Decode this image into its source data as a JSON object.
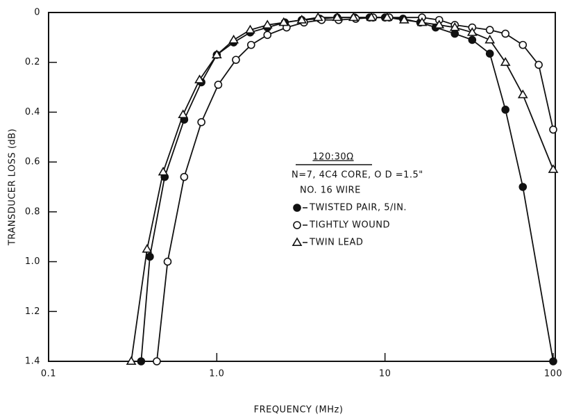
{
  "chart_data": {
    "type": "line",
    "x_label": "FREQUENCY (MHz)",
    "y_label": "TRANSDUCER LOSS (dB)",
    "annotations": [
      "120:30Ω",
      "N=7, 4C4 CORE, O D =1.5\"",
      "NO. 16 WIRE"
    ],
    "xscale": "log",
    "y_inverted": true,
    "xlim": [
      0.1,
      100
    ],
    "ylim": [
      0,
      1.4
    ],
    "xticks": [
      0.1,
      {
        "value": 1,
        "label": "1.0"
      },
      10,
      100
    ],
    "yticks": [
      0,
      0.2,
      0.4,
      0.6,
      0.8,
      {
        "value": 1,
        "label": "1.0"
      },
      1.2,
      1.4
    ],
    "series": [
      {
        "name": "TWISTED PAIR, 5/IN.",
        "marker": "filled-circle",
        "color": "#111",
        "x": [
          0.355,
          0.4,
          0.49,
          0.64,
          0.81,
          1.0,
          1.26,
          1.58,
          2.0,
          2.54,
          3.2,
          4.1,
          5.2,
          6.6,
          8.1,
          10,
          12.8,
          16.2,
          20,
          26,
          33,
          42,
          52,
          66,
          100
        ],
        "values": [
          1.4,
          0.98,
          0.66,
          0.43,
          0.28,
          0.17,
          0.12,
          0.08,
          0.06,
          0.04,
          0.03,
          0.025,
          0.02,
          0.02,
          0.02,
          0.02,
          0.025,
          0.04,
          0.06,
          0.085,
          0.11,
          0.165,
          0.39,
          0.7,
          1.4
        ]
      },
      {
        "name": "TIGHTLY WOUND",
        "marker": "open-circle",
        "color": "#111",
        "x": [
          0.44,
          0.51,
          0.64,
          0.81,
          1.02,
          1.3,
          1.6,
          2.0,
          2.6,
          3.3,
          4.2,
          5.3,
          6.7,
          8.5,
          10.6,
          16.6,
          21,
          26,
          33,
          42,
          52,
          66,
          82,
          100
        ],
        "values": [
          1.4,
          1.0,
          0.66,
          0.44,
          0.29,
          0.19,
          0.13,
          0.09,
          0.06,
          0.04,
          0.03,
          0.03,
          0.025,
          0.02,
          0.02,
          0.02,
          0.03,
          0.05,
          0.06,
          0.07,
          0.085,
          0.13,
          0.21,
          0.47
        ]
      },
      {
        "name": "TWIN LEAD",
        "marker": "open-triangle",
        "color": "#111",
        "x": [
          0.31,
          0.385,
          0.48,
          0.63,
          0.79,
          1.0,
          1.26,
          1.58,
          2.0,
          2.5,
          3.2,
          4.0,
          5.2,
          6.5,
          8.3,
          10.3,
          13,
          16.6,
          21,
          26,
          33,
          42,
          52,
          66,
          100
        ],
        "values": [
          1.4,
          0.95,
          0.64,
          0.41,
          0.27,
          0.17,
          0.11,
          0.07,
          0.05,
          0.04,
          0.03,
          0.02,
          0.02,
          0.02,
          0.02,
          0.02,
          0.03,
          0.04,
          0.05,
          0.06,
          0.08,
          0.11,
          0.2,
          0.33,
          0.63
        ]
      }
    ]
  }
}
